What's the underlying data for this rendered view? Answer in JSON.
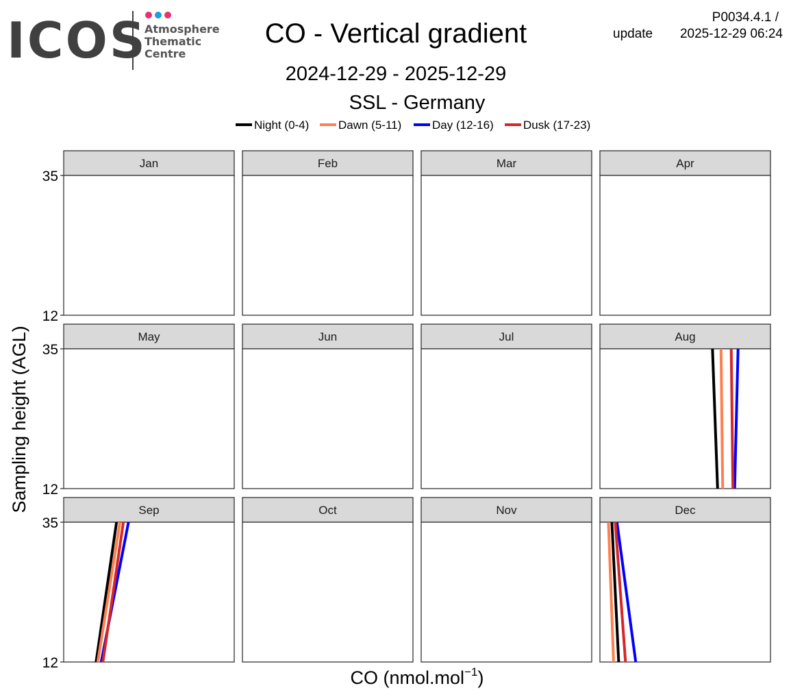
{
  "logo": {
    "brand": "ICOS",
    "lines": [
      "Atmosphere",
      "Thematic",
      "Centre"
    ],
    "dot_colors": [
      "#e6336f",
      "#1aa0e0",
      "#e6336f"
    ],
    "divider_color": "#404040"
  },
  "header": {
    "title": "CO - Vertical gradient",
    "date_range": "2024-12-29 - 2025-12-29",
    "station": "SSL - Germany",
    "product_code": "P0034.4.1 /",
    "update_label": "update",
    "update_time": "2025-12-29 06:24"
  },
  "legend": [
    {
      "label": "Night (0-4)",
      "color": "#000000"
    },
    {
      "label": "Dawn (5-11)",
      "color": "#ff7f50"
    },
    {
      "label": "Day (12-16)",
      "color": "#0000ff"
    },
    {
      "label": "Dusk (17-23)",
      "color": "#d62728"
    }
  ],
  "chart_data": {
    "type": "line",
    "facets": [
      "Jan",
      "Feb",
      "Mar",
      "Apr",
      "May",
      "Jun",
      "Jul",
      "Aug",
      "Sep",
      "Oct",
      "Nov",
      "Dec"
    ],
    "ylabel": "Sampling height (AGL)",
    "xlabel": "CO (nmol.mol",
    "xlabel_sup": "−1",
    "xlabel_close": ")",
    "y_ticks": [
      35,
      12
    ],
    "ylim": [
      12,
      35
    ],
    "x_ticks_visible": false,
    "grid": false,
    "legend_position": "top",
    "series": [
      {
        "name": "Night (0-4)",
        "color": "#000000",
        "points": [
          {
            "month": "Aug",
            "co_at_12": 0.69,
            "co_at_35": 0.66
          },
          {
            "month": "Sep",
            "co_at_12": 0.19,
            "co_at_35": 0.31
          },
          {
            "month": "Dec",
            "co_at_12": 0.11,
            "co_at_35": 0.07
          }
        ]
      },
      {
        "name": "Dawn (5-11)",
        "color": "#ff7f50",
        "points": [
          {
            "month": "Aug",
            "co_at_12": 0.72,
            "co_at_35": 0.71
          },
          {
            "month": "Sep",
            "co_at_12": 0.2,
            "co_at_35": 0.33
          },
          {
            "month": "Dec",
            "co_at_12": 0.08,
            "co_at_35": 0.05
          }
        ]
      },
      {
        "name": "Day (12-16)",
        "color": "#0000ff",
        "points": [
          {
            "month": "Aug",
            "co_at_12": 0.79,
            "co_at_35": 0.81
          },
          {
            "month": "Sep",
            "co_at_12": 0.22,
            "co_at_35": 0.38
          },
          {
            "month": "Dec",
            "co_at_12": 0.21,
            "co_at_35": 0.1
          }
        ]
      },
      {
        "name": "Dusk (17-23)",
        "color": "#d62728",
        "points": [
          {
            "month": "Aug",
            "co_at_12": 0.78,
            "co_at_35": 0.77
          },
          {
            "month": "Sep",
            "co_at_12": 0.23,
            "co_at_35": 0.35
          },
          {
            "month": "Dec",
            "co_at_12": 0.15,
            "co_at_35": 0.09
          }
        ]
      }
    ]
  },
  "styles": {
    "strip_fill": "#d9d9d9",
    "panel_border": "#333333",
    "background": "#ffffff"
  }
}
